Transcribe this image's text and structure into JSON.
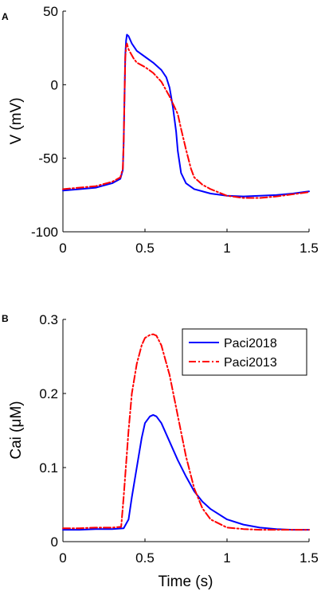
{
  "chart_data": [
    {
      "type": "line",
      "panel_label": "A",
      "xlabel": "",
      "ylabel": "V (mV)",
      "xlim": [
        0,
        1.5
      ],
      "ylim": [
        -100,
        50
      ],
      "xticks": [
        0,
        0.5,
        1,
        1.5
      ],
      "xtick_labels": [
        "0",
        "0.5",
        "1",
        "1.5"
      ],
      "yticks": [
        -100,
        -50,
        0,
        50
      ],
      "ytick_labels": [
        "-100",
        "-50",
        "0",
        "50"
      ],
      "grid": false,
      "legend": "none",
      "series": [
        {
          "color": "#0000ff",
          "dash": "solid",
          "x": [
            0,
            0.1,
            0.2,
            0.3,
            0.35,
            0.365,
            0.37,
            0.375,
            0.38,
            0.385,
            0.39,
            0.4,
            0.42,
            0.45,
            0.5,
            0.55,
            0.6,
            0.63,
            0.65,
            0.67,
            0.69,
            0.7,
            0.72,
            0.75,
            0.8,
            0.9,
            1.0,
            1.1,
            1.2,
            1.3,
            1.4,
            1.5
          ],
          "y": [
            -72,
            -71,
            -70,
            -67,
            -64,
            -58,
            -40,
            -10,
            20,
            30,
            34,
            33,
            28,
            23,
            19,
            15,
            10,
            5,
            -2,
            -15,
            -32,
            -45,
            -60,
            -67,
            -71,
            -74,
            -75.5,
            -76,
            -75.5,
            -75,
            -74,
            -72.5
          ]
        },
        {
          "color": "#ff0000",
          "dash": "dash-dot",
          "x": [
            0,
            0.1,
            0.2,
            0.3,
            0.35,
            0.365,
            0.37,
            0.375,
            0.38,
            0.385,
            0.39,
            0.4,
            0.43,
            0.45,
            0.5,
            0.55,
            0.6,
            0.65,
            0.7,
            0.72,
            0.75,
            0.78,
            0.8,
            0.85,
            0.9,
            1.0,
            1.1,
            1.2,
            1.3,
            1.4,
            1.5
          ],
          "y": [
            -71,
            -70,
            -69,
            -66,
            -63,
            -57,
            -40,
            -10,
            18,
            26,
            28,
            24,
            18,
            15,
            12,
            8,
            2,
            -8,
            -20,
            -30,
            -44,
            -57,
            -63,
            -68,
            -71,
            -75.5,
            -77,
            -77,
            -76,
            -74.5,
            -73
          ]
        }
      ]
    },
    {
      "type": "line",
      "panel_label": "B",
      "xlabel": "Time (s)",
      "ylabel": "Cai (μM)",
      "xlim": [
        0,
        1.5
      ],
      "ylim": [
        0,
        0.3
      ],
      "xticks": [
        0,
        0.5,
        1,
        1.5
      ],
      "xtick_labels": [
        "0",
        "0.5",
        "1",
        "1.5"
      ],
      "yticks": [
        0,
        0.1,
        0.2,
        0.3
      ],
      "ytick_labels": [
        "0",
        "0.1",
        "0.2",
        "0.3"
      ],
      "grid": false,
      "legend": "top-right",
      "series": [
        {
          "name": "Paci2018",
          "color": "#0000ff",
          "dash": "solid",
          "x": [
            0,
            0.1,
            0.2,
            0.3,
            0.37,
            0.4,
            0.42,
            0.45,
            0.48,
            0.5,
            0.53,
            0.55,
            0.57,
            0.6,
            0.65,
            0.7,
            0.75,
            0.8,
            0.85,
            0.9,
            1.0,
            1.1,
            1.2,
            1.3,
            1.4,
            1.5
          ],
          "y": [
            0.016,
            0.016,
            0.017,
            0.017,
            0.018,
            0.03,
            0.06,
            0.1,
            0.14,
            0.16,
            0.169,
            0.171,
            0.169,
            0.16,
            0.135,
            0.11,
            0.088,
            0.068,
            0.054,
            0.044,
            0.03,
            0.023,
            0.019,
            0.017,
            0.016,
            0.016
          ]
        },
        {
          "name": "Paci2013",
          "color": "#ff0000",
          "dash": "dash-dot",
          "x": [
            0,
            0.1,
            0.2,
            0.3,
            0.355,
            0.37,
            0.4,
            0.42,
            0.45,
            0.48,
            0.5,
            0.53,
            0.55,
            0.57,
            0.6,
            0.65,
            0.7,
            0.75,
            0.8,
            0.85,
            0.9,
            1.0,
            1.1,
            1.2,
            1.3,
            1.5
          ],
          "y": [
            0.018,
            0.018,
            0.019,
            0.019,
            0.02,
            0.06,
            0.15,
            0.2,
            0.24,
            0.265,
            0.275,
            0.279,
            0.28,
            0.278,
            0.265,
            0.225,
            0.17,
            0.115,
            0.072,
            0.045,
            0.03,
            0.019,
            0.017,
            0.016,
            0.016,
            0.016
          ]
        }
      ]
    }
  ]
}
